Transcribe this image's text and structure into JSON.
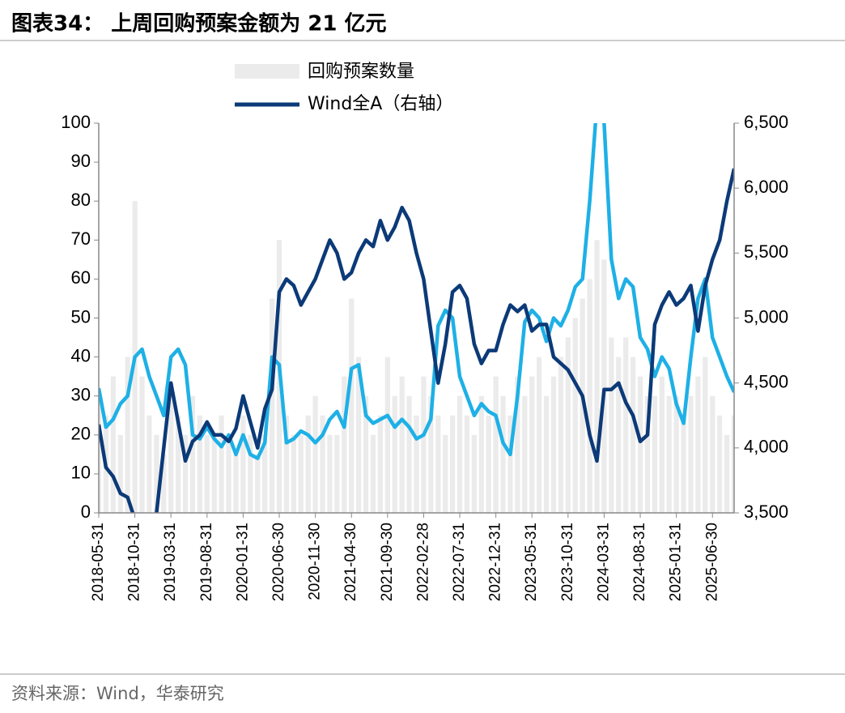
{
  "chart_data": {
    "type": "bar",
    "title": "图表34： 上周回购预案金额为 21 亿元",
    "source": "资料来源：Wind，华泰研究",
    "categories": [
      "2018-05-31",
      null,
      null,
      null,
      null,
      "2018-10-31",
      null,
      null,
      null,
      null,
      "2019-03-31",
      null,
      null,
      null,
      null,
      "2019-08-31",
      null,
      null,
      null,
      null,
      "2020-01-31",
      null,
      null,
      null,
      null,
      "2020-06-30",
      null,
      null,
      null,
      null,
      "2020-11-30",
      null,
      null,
      null,
      null,
      "2021-04-30",
      null,
      null,
      null,
      null,
      "2021-09-30",
      null,
      null,
      null,
      null,
      "2022-02-28",
      null,
      null,
      null,
      null,
      "2022-07-31",
      null,
      null,
      null,
      null,
      "2022-12-31",
      null,
      null,
      null,
      null,
      "2023-05-31",
      null,
      null,
      null,
      null,
      "2023-10-31",
      null,
      null,
      null,
      null,
      "2024-03-31",
      null,
      null,
      null,
      null,
      "2024-08-31",
      null,
      null,
      null,
      null,
      "2025-01-31",
      null,
      null,
      null,
      null,
      "2025-06-30",
      null,
      null,
      null
    ],
    "series": [
      {
        "name": "回购预案数量",
        "type": "bar",
        "color": "#ebebeb",
        "axis": "y",
        "values": [
          30,
          25,
          35,
          20,
          40,
          80,
          35,
          25,
          20,
          15,
          30,
          25,
          20,
          30,
          25,
          20,
          20,
          25,
          20,
          15,
          25,
          20,
          15,
          20,
          55,
          70,
          25,
          20,
          20,
          25,
          30,
          25,
          20,
          20,
          35,
          55,
          40,
          30,
          20,
          25,
          40,
          30,
          35,
          30,
          25,
          35,
          30,
          25,
          20,
          25,
          30,
          25,
          20,
          30,
          25,
          35,
          30,
          25,
          35,
          30,
          35,
          40,
          30,
          35,
          40,
          45,
          50,
          55,
          60,
          70,
          65,
          45,
          40,
          45,
          40,
          35,
          30,
          30,
          35,
          30,
          30,
          25,
          30,
          35,
          40,
          30,
          25,
          20,
          25
        ]
      },
      {
        "type": "line",
        "color": "#1eb0e6",
        "axis": "y",
        "values": [
          32,
          22,
          24,
          28,
          30,
          40,
          42,
          35,
          30,
          25,
          40,
          42,
          38,
          20,
          19,
          22,
          19,
          17,
          20,
          15,
          20,
          15,
          14,
          18,
          40,
          38,
          18,
          19,
          21,
          20,
          18,
          20,
          24,
          26,
          22,
          37,
          38,
          25,
          23,
          24,
          25,
          22,
          24,
          22,
          19,
          20,
          24,
          48,
          52,
          50,
          35,
          30,
          25,
          28,
          26,
          25,
          18,
          15,
          30,
          49,
          52,
          50,
          44,
          50,
          48,
          52,
          58,
          60,
          80,
          105,
          100,
          65,
          55,
          60,
          58,
          45,
          42,
          35,
          40,
          37,
          28,
          23,
          40,
          55,
          60,
          45,
          40,
          35,
          31
        ]
      },
      {
        "name": "Wind全A（右轴）",
        "type": "line",
        "color": "#0c3a78",
        "axis": "y2",
        "values": [
          4180,
          3850,
          3780,
          3650,
          3620,
          3450,
          3400,
          3350,
          3500,
          4000,
          4500,
          4200,
          3900,
          4050,
          4100,
          4200,
          4100,
          4100,
          4050,
          4150,
          4400,
          4200,
          4000,
          4300,
          4450,
          5200,
          5300,
          5250,
          5100,
          5200,
          5300,
          5450,
          5600,
          5500,
          5300,
          5350,
          5500,
          5600,
          5550,
          5750,
          5600,
          5700,
          5850,
          5750,
          5500,
          5300,
          4900,
          4500,
          4800,
          5200,
          5250,
          5150,
          4800,
          4650,
          4750,
          4750,
          4950,
          5100,
          5050,
          5100,
          4900,
          4950,
          4950,
          4700,
          4650,
          4600,
          4500,
          4400,
          4100,
          3900,
          4450,
          4450,
          4500,
          4350,
          4250,
          4050,
          4100,
          4950,
          5100,
          5200,
          5100,
          5150,
          5250,
          4900,
          5250,
          5450,
          5600,
          5900,
          6150
        ]
      }
    ],
    "ylim": [
      0,
      100
    ],
    "yticks": [
      0,
      10,
      20,
      30,
      40,
      50,
      60,
      70,
      80,
      90,
      100
    ],
    "y2lim": [
      3500,
      6500
    ],
    "y2ticks": [
      {
        "value": 3500,
        "label": "3,500"
      },
      {
        "value": 4000,
        "label": "4,000"
      },
      {
        "value": 4500,
        "label": "4,500"
      },
      {
        "value": 5000,
        "label": "5,000"
      },
      {
        "value": 5500,
        "label": "5,500"
      },
      {
        "value": 6000,
        "label": "6,000"
      },
      {
        "value": 6500,
        "label": "6,500"
      }
    ]
  }
}
